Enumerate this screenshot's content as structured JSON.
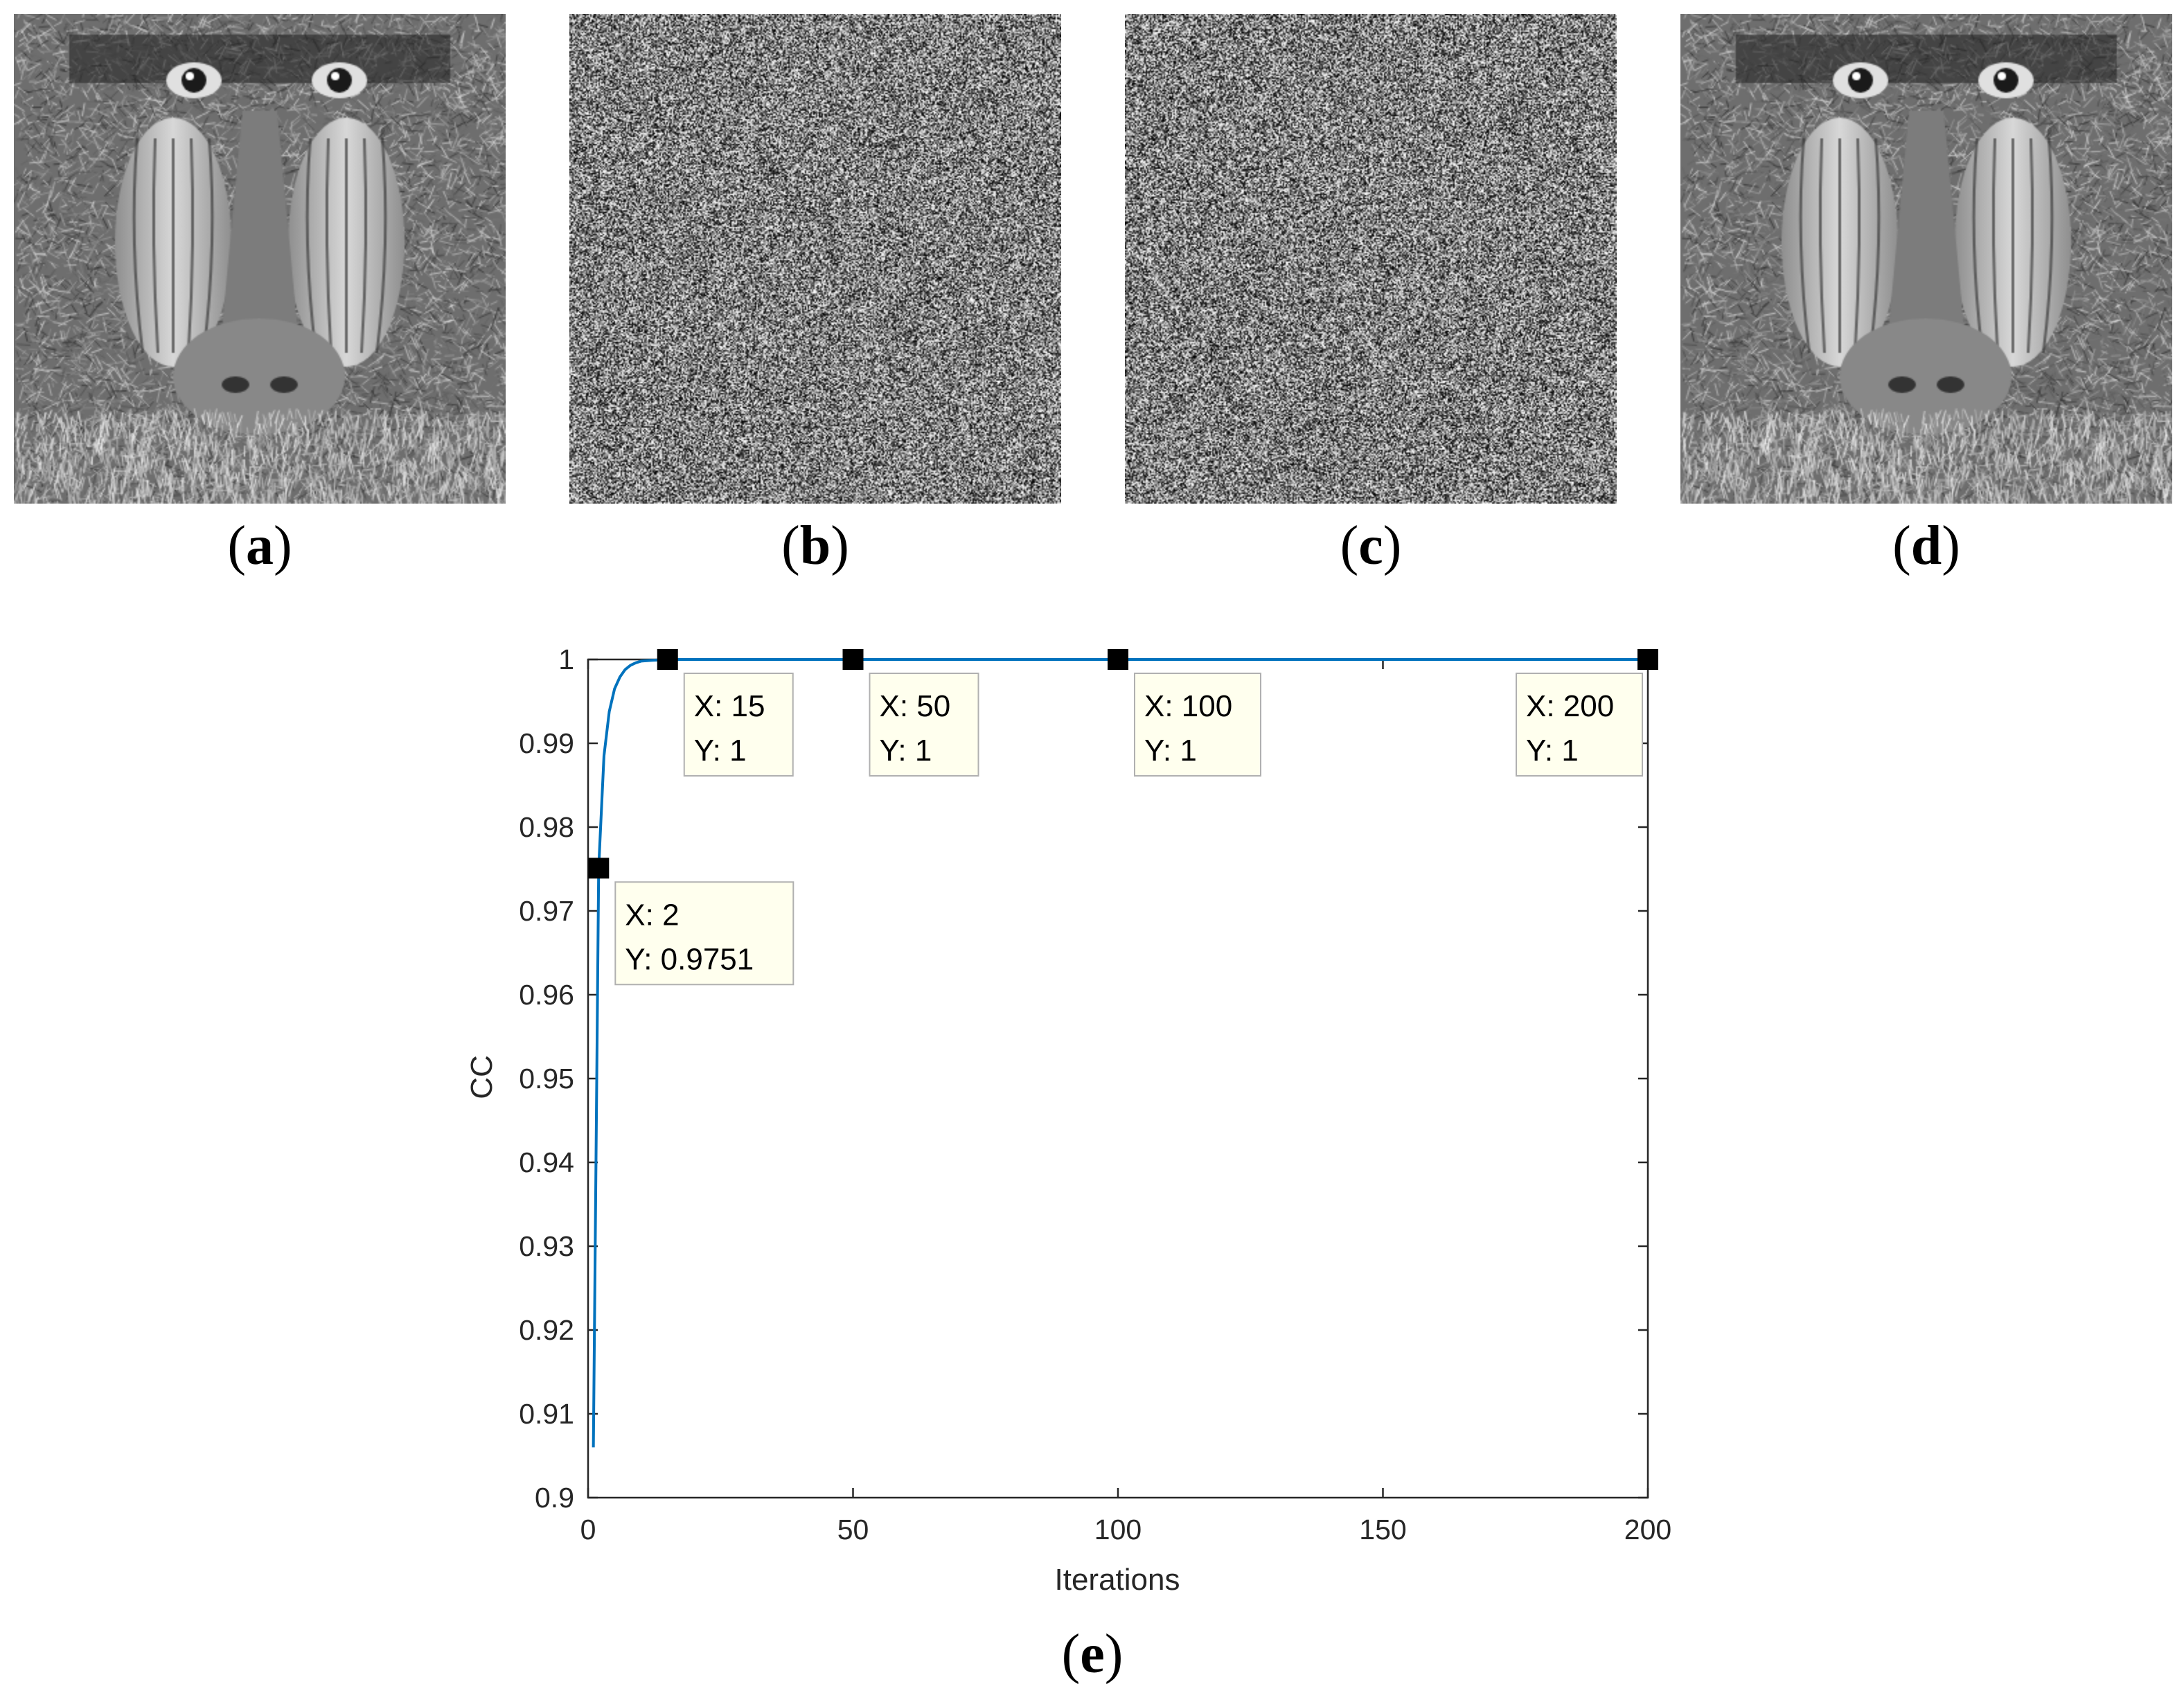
{
  "panels": [
    {
      "id": "a",
      "label": "a",
      "content": "baboon-original-icon"
    },
    {
      "id": "b",
      "label": "b",
      "content": "noise-icon"
    },
    {
      "id": "c",
      "label": "c",
      "content": "noise-icon"
    },
    {
      "id": "d",
      "label": "d",
      "content": "baboon-decrypted-icon"
    }
  ],
  "figure_e_label": "e",
  "chart_data": {
    "type": "line",
    "xlabel": "Iterations",
    "ylabel": "CC",
    "xlim": [
      0,
      200
    ],
    "ylim": [
      0.9,
      1
    ],
    "xticks": [
      0,
      50,
      100,
      150,
      200
    ],
    "yticks": [
      0.9,
      0.91,
      0.92,
      0.93,
      0.94,
      0.95,
      0.96,
      0.97,
      0.98,
      0.99,
      1
    ],
    "ytick_labels": [
      "0.9",
      "0.91",
      "0.92",
      "0.93",
      "0.94",
      "0.95",
      "0.96",
      "0.97",
      "0.98",
      "0.99",
      "1"
    ],
    "grid": false,
    "series": [
      {
        "color": "#0072bd",
        "x": [
          1,
          2,
          3,
          4,
          5,
          6,
          7,
          8,
          9,
          10,
          12,
          15,
          50,
          100,
          200
        ],
        "y": [
          0.906,
          0.9751,
          0.9885,
          0.9938,
          0.9965,
          0.9979,
          0.9988,
          0.9993,
          0.9996,
          0.9998,
          0.9999,
          1,
          1,
          1,
          1
        ]
      }
    ],
    "datatips": [
      {
        "x": 2,
        "y": 0.9751,
        "line1": "X: 2",
        "line2": "Y: 0.9751"
      },
      {
        "x": 15,
        "y": 1,
        "line1": "X: 15",
        "line2": "Y: 1"
      },
      {
        "x": 50,
        "y": 1,
        "line1": "X: 50",
        "line2": "Y: 1"
      },
      {
        "x": 100,
        "y": 1,
        "line1": "X: 100",
        "line2": "Y: 1"
      },
      {
        "x": 200,
        "y": 1,
        "line1": "X: 200",
        "line2": "Y: 1"
      }
    ],
    "colors": {
      "axis": "#262626",
      "tip_fill": "#ffffee",
      "tip_border": "#b0b0b0",
      "marker": "#000000"
    }
  }
}
